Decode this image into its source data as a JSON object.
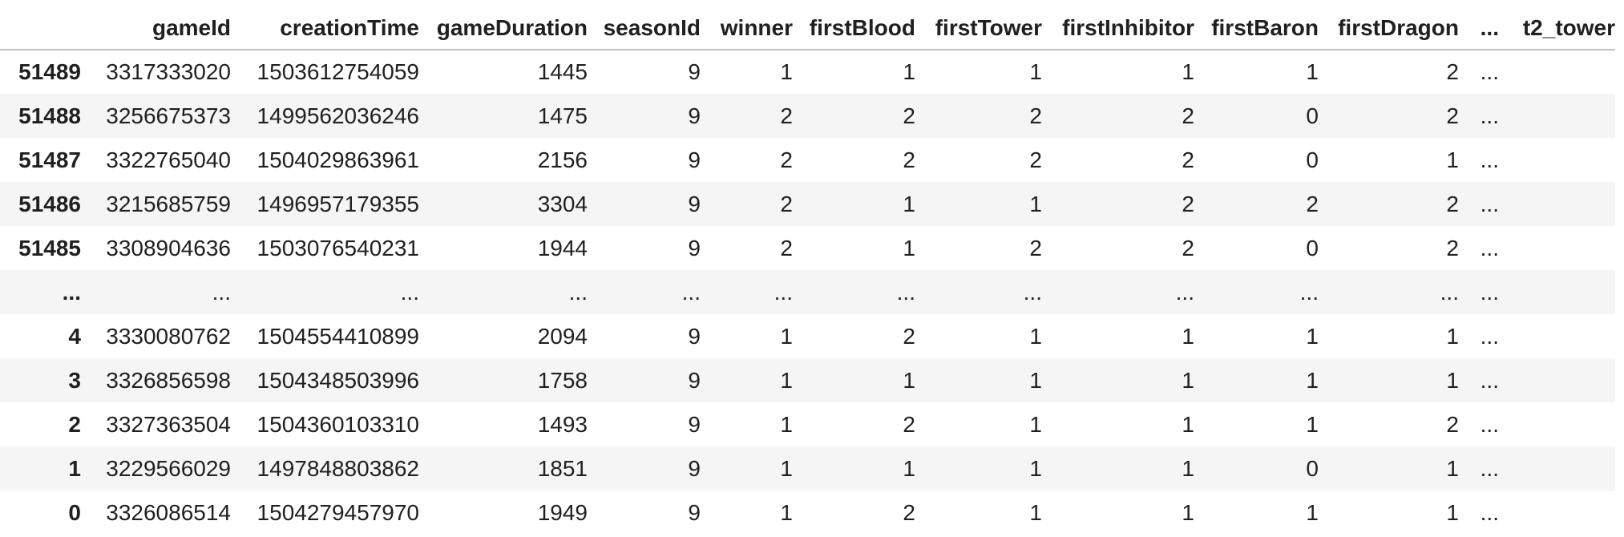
{
  "table": {
    "index_header": "",
    "columns": [
      "gameId",
      "creationTime",
      "gameDuration",
      "seasonId",
      "winner",
      "firstBlood",
      "firstTower",
      "firstInhibitor",
      "firstBaron",
      "firstDragon",
      "...",
      "t2_tower"
    ],
    "rows": [
      {
        "index": "51489",
        "cells": [
          "3317333020",
          "1503612754059",
          "1445",
          "9",
          "1",
          "1",
          "1",
          "1",
          "1",
          "2",
          "...",
          ""
        ]
      },
      {
        "index": "51488",
        "cells": [
          "3256675373",
          "1499562036246",
          "1475",
          "9",
          "2",
          "2",
          "2",
          "2",
          "0",
          "2",
          "...",
          ""
        ]
      },
      {
        "index": "51487",
        "cells": [
          "3322765040",
          "1504029863961",
          "2156",
          "9",
          "2",
          "2",
          "2",
          "2",
          "0",
          "1",
          "...",
          ""
        ]
      },
      {
        "index": "51486",
        "cells": [
          "3215685759",
          "1496957179355",
          "3304",
          "9",
          "2",
          "1",
          "1",
          "2",
          "2",
          "2",
          "...",
          ""
        ]
      },
      {
        "index": "51485",
        "cells": [
          "3308904636",
          "1503076540231",
          "1944",
          "9",
          "2",
          "1",
          "2",
          "2",
          "0",
          "2",
          "...",
          ""
        ]
      },
      {
        "index": "...",
        "cells": [
          "...",
          "...",
          "...",
          "...",
          "...",
          "...",
          "...",
          "...",
          "...",
          "...",
          "...",
          ""
        ]
      },
      {
        "index": "4",
        "cells": [
          "3330080762",
          "1504554410899",
          "2094",
          "9",
          "1",
          "2",
          "1",
          "1",
          "1",
          "1",
          "...",
          ""
        ]
      },
      {
        "index": "3",
        "cells": [
          "3326856598",
          "1504348503996",
          "1758",
          "9",
          "1",
          "1",
          "1",
          "1",
          "1",
          "1",
          "...",
          ""
        ]
      },
      {
        "index": "2",
        "cells": [
          "3327363504",
          "1504360103310",
          "1493",
          "9",
          "1",
          "2",
          "1",
          "1",
          "1",
          "2",
          "...",
          ""
        ]
      },
      {
        "index": "1",
        "cells": [
          "3229566029",
          "1497848803862",
          "1851",
          "9",
          "1",
          "1",
          "1",
          "1",
          "0",
          "1",
          "...",
          ""
        ]
      },
      {
        "index": "0",
        "cells": [
          "3326086514",
          "1504279457970",
          "1949",
          "9",
          "1",
          "2",
          "1",
          "1",
          "1",
          "1",
          "...",
          ""
        ]
      }
    ],
    "colors": {
      "background": "#ffffff",
      "stripe": "#f5f5f5",
      "header_border": "#c1c1c1",
      "text": "#202020"
    }
  }
}
